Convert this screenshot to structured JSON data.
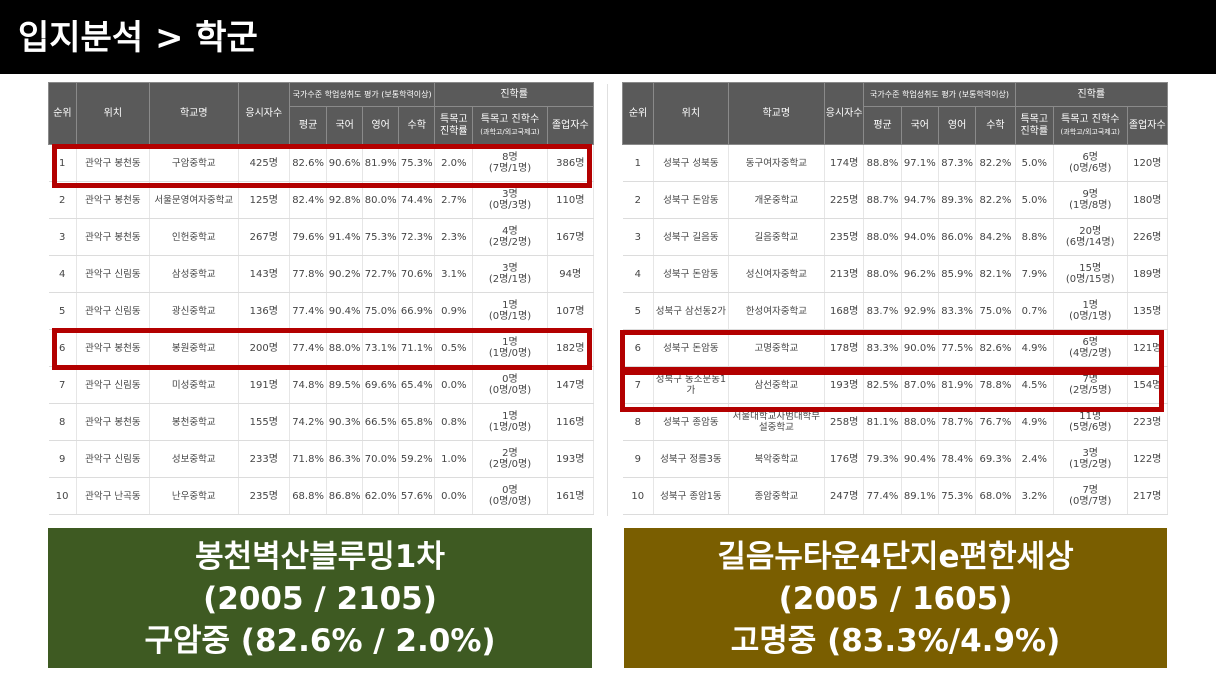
{
  "page_title": "입지분석 > 학군",
  "table_headers": {
    "rank": "순위",
    "location": "위치",
    "school": "학교명",
    "students": "응시자수",
    "achievement_group": "국가수준 학업성취도 평가 (보통학력이상)",
    "avg": "평균",
    "korean": "국어",
    "english": "영어",
    "math": "수학",
    "advancement_group": "진학률",
    "special_rate": "특목고 진학률",
    "special_count": "특목고 진학수",
    "special_count_sub": "(과학고/외고국제고)",
    "graduates": "졸업자수"
  },
  "left_table": {
    "rows": [
      {
        "rank": "1",
        "location": "관악구 봉천동",
        "school": "구암중학교",
        "students": "425명",
        "avg": "82.6%",
        "korean": "90.6%",
        "english": "81.9%",
        "math": "75.3%",
        "special_rate": "2.0%",
        "special_count": "8명",
        "special_detail": "(7명/1명)",
        "graduates": "386명"
      },
      {
        "rank": "2",
        "location": "관악구 봉천동",
        "school": "서울문영여자중학교",
        "students": "125명",
        "avg": "82.4%",
        "korean": "92.8%",
        "english": "80.0%",
        "math": "74.4%",
        "special_rate": "2.7%",
        "special_count": "3명",
        "special_detail": "(0명/3명)",
        "graduates": "110명"
      },
      {
        "rank": "3",
        "location": "관악구 봉천동",
        "school": "인헌중학교",
        "students": "267명",
        "avg": "79.6%",
        "korean": "91.4%",
        "english": "75.3%",
        "math": "72.3%",
        "special_rate": "2.3%",
        "special_count": "4명",
        "special_detail": "(2명/2명)",
        "graduates": "167명"
      },
      {
        "rank": "4",
        "location": "관악구 신림동",
        "school": "삼성중학교",
        "students": "143명",
        "avg": "77.8%",
        "korean": "90.2%",
        "english": "72.7%",
        "math": "70.6%",
        "special_rate": "3.1%",
        "special_count": "3명",
        "special_detail": "(2명/1명)",
        "graduates": "94명"
      },
      {
        "rank": "5",
        "location": "관악구 신림동",
        "school": "광신중학교",
        "students": "136명",
        "avg": "77.4%",
        "korean": "90.4%",
        "english": "75.0%",
        "math": "66.9%",
        "special_rate": "0.9%",
        "special_count": "1명",
        "special_detail": "(0명/1명)",
        "graduates": "107명"
      },
      {
        "rank": "6",
        "location": "관악구 봉천동",
        "school": "봉원중학교",
        "students": "200명",
        "avg": "77.4%",
        "korean": "88.0%",
        "english": "73.1%",
        "math": "71.1%",
        "special_rate": "0.5%",
        "special_count": "1명",
        "special_detail": "(1명/0명)",
        "graduates": "182명"
      },
      {
        "rank": "7",
        "location": "관악구 신림동",
        "school": "미성중학교",
        "students": "191명",
        "avg": "74.8%",
        "korean": "89.5%",
        "english": "69.6%",
        "math": "65.4%",
        "special_rate": "0.0%",
        "special_count": "0명",
        "special_detail": "(0명/0명)",
        "graduates": "147명"
      },
      {
        "rank": "8",
        "location": "관악구 봉천동",
        "school": "봉천중학교",
        "students": "155명",
        "avg": "74.2%",
        "korean": "90.3%",
        "english": "66.5%",
        "math": "65.8%",
        "special_rate": "0.8%",
        "special_count": "1명",
        "special_detail": "(1명/0명)",
        "graduates": "116명"
      },
      {
        "rank": "9",
        "location": "관악구 신림동",
        "school": "성보중학교",
        "students": "233명",
        "avg": "71.8%",
        "korean": "86.3%",
        "english": "70.0%",
        "math": "59.2%",
        "special_rate": "1.0%",
        "special_count": "2명",
        "special_detail": "(2명/0명)",
        "graduates": "193명"
      },
      {
        "rank": "10",
        "location": "관악구 난곡동",
        "school": "난우중학교",
        "students": "235명",
        "avg": "68.8%",
        "korean": "86.8%",
        "english": "62.0%",
        "math": "57.6%",
        "special_rate": "0.0%",
        "special_count": "0명",
        "special_detail": "(0명/0명)",
        "graduates": "161명"
      }
    ]
  },
  "right_table": {
    "rows": [
      {
        "rank": "1",
        "location": "성북구 성북동",
        "school": "동구여자중학교",
        "students": "174명",
        "avg": "88.8%",
        "korean": "97.1%",
        "english": "87.3%",
        "math": "82.2%",
        "special_rate": "5.0%",
        "special_count": "6명",
        "special_detail": "(0명/6명)",
        "graduates": "120명"
      },
      {
        "rank": "2",
        "location": "성북구 돈암동",
        "school": "개운중학교",
        "students": "225명",
        "avg": "88.7%",
        "korean": "94.7%",
        "english": "89.3%",
        "math": "82.2%",
        "special_rate": "5.0%",
        "special_count": "9명",
        "special_detail": "(1명/8명)",
        "graduates": "180명"
      },
      {
        "rank": "3",
        "location": "성북구 길음동",
        "school": "길음중학교",
        "students": "235명",
        "avg": "88.0%",
        "korean": "94.0%",
        "english": "86.0%",
        "math": "84.2%",
        "special_rate": "8.8%",
        "special_count": "20명",
        "special_detail": "(6명/14명)",
        "graduates": "226명"
      },
      {
        "rank": "4",
        "location": "성북구 돈암동",
        "school": "성신여자중학교",
        "students": "213명",
        "avg": "88.0%",
        "korean": "96.2%",
        "english": "85.9%",
        "math": "82.1%",
        "special_rate": "7.9%",
        "special_count": "15명",
        "special_detail": "(0명/15명)",
        "graduates": "189명"
      },
      {
        "rank": "5",
        "location": "성북구 삼선동2가",
        "school": "한성여자중학교",
        "students": "168명",
        "avg": "83.7%",
        "korean": "92.9%",
        "english": "83.3%",
        "math": "75.0%",
        "special_rate": "0.7%",
        "special_count": "1명",
        "special_detail": "(0명/1명)",
        "graduates": "135명"
      },
      {
        "rank": "6",
        "location": "성북구 돈암동",
        "school": "고명중학교",
        "students": "178명",
        "avg": "83.3%",
        "korean": "90.0%",
        "english": "77.5%",
        "math": "82.6%",
        "special_rate": "4.9%",
        "special_count": "6명",
        "special_detail": "(4명/2명)",
        "graduates": "121명"
      },
      {
        "rank": "7",
        "location": "성북구 동소문동1가",
        "school": "삼선중학교",
        "students": "193명",
        "avg": "82.5%",
        "korean": "87.0%",
        "english": "81.9%",
        "math": "78.8%",
        "special_rate": "4.5%",
        "special_count": "7명",
        "special_detail": "(2명/5명)",
        "graduates": "154명"
      },
      {
        "rank": "8",
        "location": "성북구 종암동",
        "school": "서울대학교사범대학부설중학교",
        "students": "258명",
        "avg": "81.1%",
        "korean": "88.0%",
        "english": "78.7%",
        "math": "76.7%",
        "special_rate": "4.9%",
        "special_count": "11명",
        "special_detail": "(5명/6명)",
        "graduates": "223명"
      },
      {
        "rank": "9",
        "location": "성북구 정릉3동",
        "school": "북악중학교",
        "students": "176명",
        "avg": "79.3%",
        "korean": "90.4%",
        "english": "78.4%",
        "math": "69.3%",
        "special_rate": "2.4%",
        "special_count": "3명",
        "special_detail": "(1명/2명)",
        "graduates": "122명"
      },
      {
        "rank": "10",
        "location": "성북구 종암1동",
        "school": "종암중학교",
        "students": "247명",
        "avg": "77.4%",
        "korean": "89.1%",
        "english": "75.3%",
        "math": "68.0%",
        "special_rate": "3.2%",
        "special_count": "7명",
        "special_detail": "(0명/7명)",
        "graduates": "217명"
      }
    ]
  },
  "captions": {
    "left": {
      "line1": "봉천벽산블루밍1차",
      "line2": "(2005 / 2105)",
      "line3": "구암중 (82.6% / 2.0%)"
    },
    "right": {
      "line1": "길음뉴타운4단지e편한세상",
      "line2": "(2005 / 1605)",
      "line3": "고명중 (83.3%/4.9%)"
    }
  },
  "colors": {
    "header_bg": "#000000",
    "table_header_bg": "#5a5a5a",
    "highlight": "#b30000",
    "caption_left_bg": "#3e5a22",
    "caption_right_bg": "#7a5e00"
  }
}
